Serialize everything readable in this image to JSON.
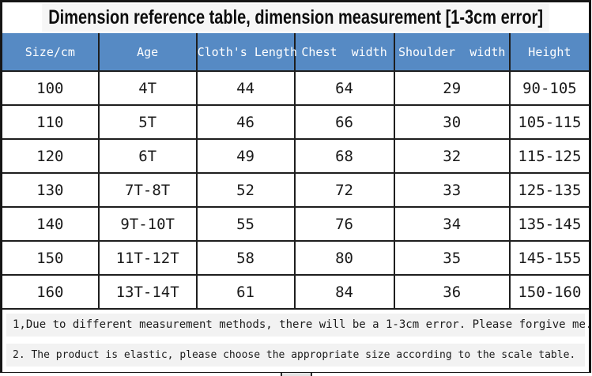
{
  "title": "Dimension reference table, dimension measurement [1-3cm error]",
  "table": {
    "headers": [
      "Size/cm",
      "Age",
      "Cloth's Length",
      "Chest  width",
      "Shoulder  width",
      "Height"
    ],
    "col_widths_percent": [
      16.4,
      16.7,
      16.7,
      17.0,
      19.7,
      13.5
    ],
    "rows": [
      [
        "100",
        "4T",
        "44",
        "64",
        "29",
        "90-105"
      ],
      [
        "110",
        "5T",
        "46",
        "66",
        "30",
        "105-115"
      ],
      [
        "120",
        "6T",
        "49",
        "68",
        "32",
        "115-125"
      ],
      [
        "130",
        "7T-8T",
        "52",
        "72",
        "33",
        "125-135"
      ],
      [
        "140",
        "9T-10T",
        "55",
        "76",
        "34",
        "135-145"
      ],
      [
        "150",
        "11T-12T",
        "58",
        "80",
        "35",
        "145-155"
      ],
      [
        "160",
        "13T-14T",
        "61",
        "84",
        "36",
        "150-160"
      ]
    ]
  },
  "notes": [
    "1,Due to different measurement methods, there will be a 1-3cm error. Please forgive me.",
    "2. The product is elastic, please choose the appropriate size according to the scale table."
  ],
  "colors": {
    "header_bg": "#568ac4",
    "header_text": "#ffffff",
    "grid_line": "#1e1e1e",
    "note_highlight": "#f2f2f2",
    "frame_border": "#161616"
  }
}
